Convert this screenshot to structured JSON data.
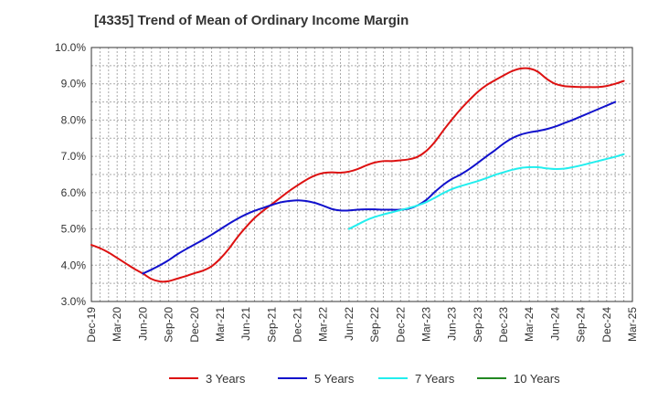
{
  "chart_data": {
    "type": "line",
    "title": "[4335]  Trend of Mean of Ordinary Income Margin",
    "xlabel": "",
    "ylabel": "",
    "ylim": [
      3.0,
      10.0
    ],
    "y_ticks": [
      "3.0%",
      "4.0%",
      "5.0%",
      "6.0%",
      "7.0%",
      "8.0%",
      "9.0%",
      "10.0%"
    ],
    "x_ticks": [
      "Dec-19",
      "Mar-20",
      "Jun-20",
      "Sep-20",
      "Dec-20",
      "Mar-21",
      "Jun-21",
      "Sep-21",
      "Dec-21",
      "Mar-22",
      "Jun-22",
      "Sep-22",
      "Dec-22",
      "Mar-23",
      "Jun-23",
      "Sep-23",
      "Dec-23",
      "Mar-24",
      "Jun-24",
      "Sep-24",
      "Dec-24",
      "Mar-25"
    ],
    "grid": true,
    "legend_position": "bottom",
    "series": [
      {
        "name": "3 Years",
        "color": "#dd1111",
        "start": "Dec-19",
        "values": [
          4.56,
          4.47,
          4.35,
          4.2,
          4.05,
          3.9,
          3.77,
          3.62,
          3.55,
          3.56,
          3.63,
          3.7,
          3.78,
          3.85,
          3.97,
          4.18,
          4.45,
          4.77,
          5.05,
          5.3,
          5.5,
          5.68,
          5.86,
          6.04,
          6.2,
          6.35,
          6.47,
          6.54,
          6.56,
          6.55,
          6.58,
          6.65,
          6.75,
          6.83,
          6.87,
          6.87,
          6.89,
          6.92,
          6.99,
          7.15,
          7.4,
          7.72,
          8.02,
          8.3,
          8.55,
          8.78,
          8.96,
          9.1,
          9.23,
          9.35,
          9.42,
          9.42,
          9.33,
          9.14,
          9.0,
          8.94,
          8.92,
          8.91,
          8.91,
          8.91,
          8.94,
          9.0,
          9.08
        ]
      },
      {
        "name": "5 Years",
        "color": "#1111cc",
        "start": "Jun-20",
        "values": [
          3.77,
          3.88,
          4.0,
          4.14,
          4.3,
          4.44,
          4.57,
          4.7,
          4.84,
          4.99,
          5.14,
          5.28,
          5.4,
          5.5,
          5.58,
          5.66,
          5.73,
          5.77,
          5.79,
          5.77,
          5.72,
          5.64,
          5.55,
          5.51,
          5.51,
          5.53,
          5.54,
          5.54,
          5.53,
          5.53,
          5.53,
          5.56,
          5.65,
          5.8,
          6.02,
          6.22,
          6.38,
          6.5,
          6.65,
          6.82,
          7.0,
          7.17,
          7.35,
          7.5,
          7.6,
          7.66,
          7.7,
          7.75,
          7.82,
          7.91,
          8.0,
          8.1,
          8.2,
          8.3,
          8.4,
          8.5
        ]
      },
      {
        "name": "7 Years",
        "color": "#22eeee",
        "start": "Jun-22",
        "values": [
          5.0,
          5.12,
          5.24,
          5.33,
          5.4,
          5.46,
          5.52,
          5.58,
          5.65,
          5.74,
          5.86,
          5.99,
          6.1,
          6.18,
          6.25,
          6.32,
          6.4,
          6.49,
          6.56,
          6.63,
          6.68,
          6.7,
          6.7,
          6.67,
          6.65,
          6.66,
          6.7,
          6.75,
          6.81,
          6.87,
          6.93,
          6.99,
          7.06
        ]
      },
      {
        "name": "10 Years",
        "color": "#228822",
        "start": "",
        "values": []
      }
    ]
  }
}
